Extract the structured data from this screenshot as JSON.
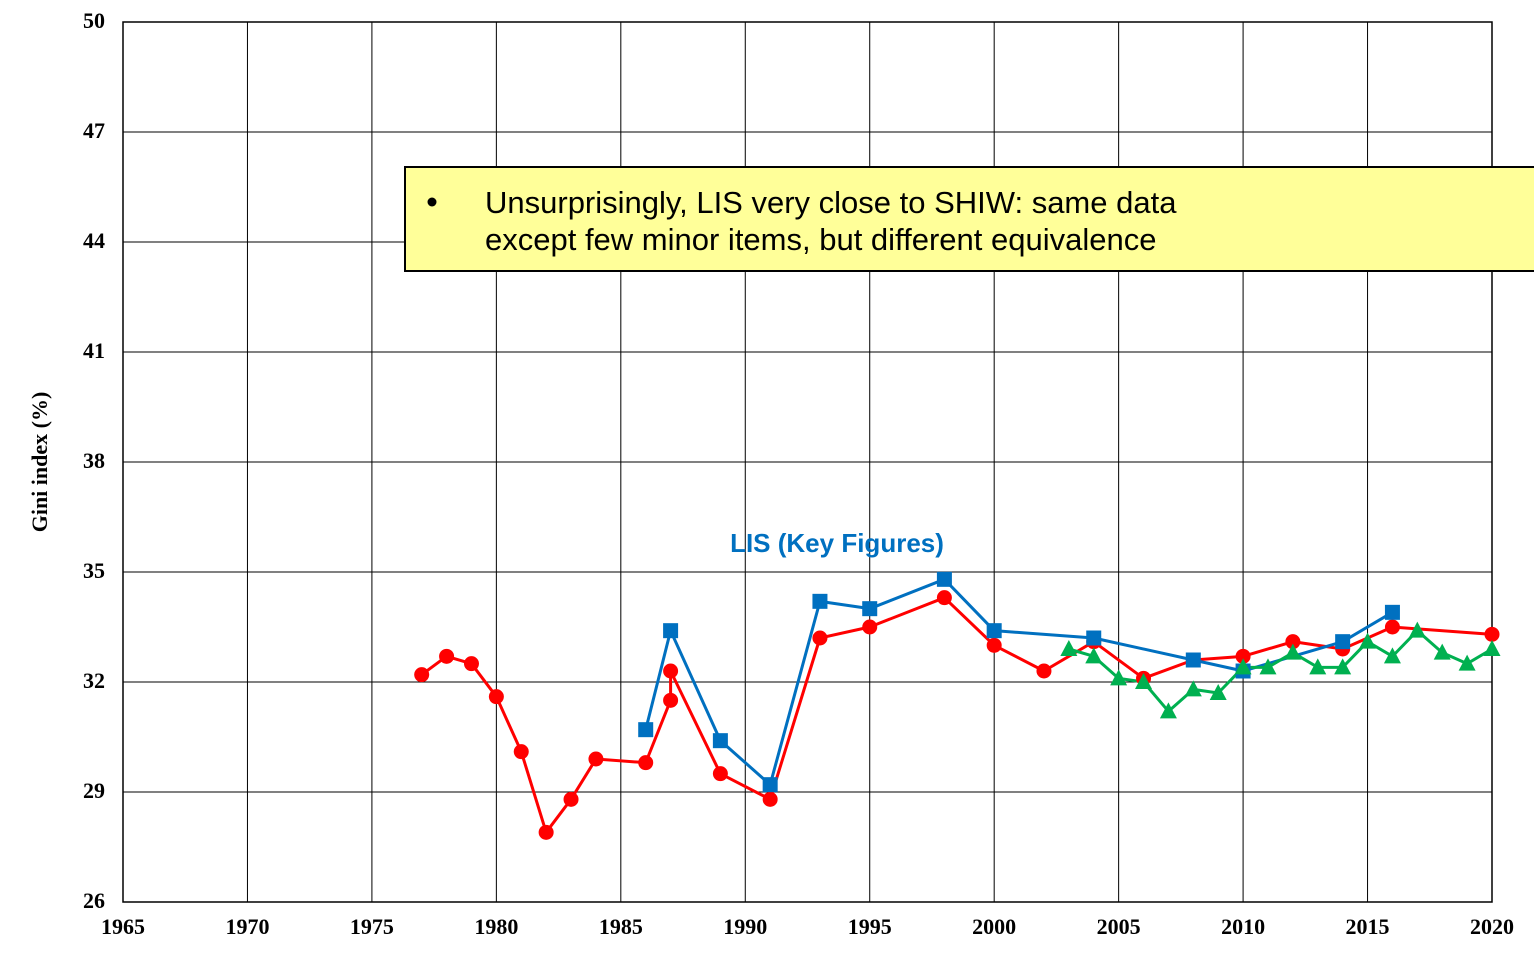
{
  "chart_data": {
    "type": "line",
    "y_label": "Gini index (%)",
    "annotation_lines": [
      "Unsurprisingly, LIS very close to SHIW: same data",
      "except few minor items, but different equivalence"
    ],
    "xlim": [
      1965,
      2020
    ],
    "xticks": [
      1965,
      1970,
      1975,
      1980,
      1985,
      1990,
      1995,
      2000,
      2005,
      2010,
      2015,
      2020
    ],
    "ylim": [
      26,
      50
    ],
    "yticks": [
      26,
      29,
      32,
      35,
      38,
      41,
      44,
      47,
      50
    ],
    "grid": true,
    "series": [
      {
        "color": "#ff0000",
        "marker": "circle",
        "x": [
          1977,
          1978,
          1979,
          1980,
          1981,
          1982,
          1983,
          1984,
          1986,
          1987,
          1987,
          1989,
          1991,
          1993,
          1995,
          1998,
          2000,
          2002,
          2004,
          2006,
          2008,
          2010,
          2012,
          2014,
          2016,
          2020
        ],
        "values": [
          32.2,
          32.7,
          32.5,
          31.6,
          30.1,
          27.9,
          28.8,
          29.9,
          29.8,
          31.5,
          32.3,
          29.5,
          28.8,
          33.2,
          33.5,
          34.3,
          33.0,
          32.3,
          33.1,
          32.1,
          32.6,
          32.7,
          33.1,
          32.9,
          33.5,
          33.3
        ]
      },
      {
        "name": "LIS (Key Figures)",
        "color": "#0070c0",
        "marker": "square",
        "x": [
          1986,
          1987,
          1989,
          1991,
          1993,
          1995,
          1998,
          2000,
          2004,
          2008,
          2010,
          2014,
          2016
        ],
        "values": [
          30.7,
          33.4,
          30.4,
          29.2,
          34.2,
          34.0,
          34.8,
          33.4,
          33.2,
          32.6,
          32.3,
          33.1,
          33.9
        ]
      },
      {
        "color": "#00b050",
        "marker": "triangle",
        "x": [
          2003,
          2004,
          2005,
          2006,
          2007,
          2008,
          2009,
          2010,
          2011,
          2012,
          2013,
          2014,
          2015,
          2016,
          2017,
          2018,
          2019,
          2020
        ],
        "values": [
          32.9,
          32.7,
          32.1,
          32.0,
          31.2,
          31.8,
          31.7,
          32.4,
          32.4,
          32.8,
          32.4,
          32.4,
          33.1,
          32.7,
          33.4,
          32.8,
          32.5,
          32.9
        ]
      }
    ]
  }
}
